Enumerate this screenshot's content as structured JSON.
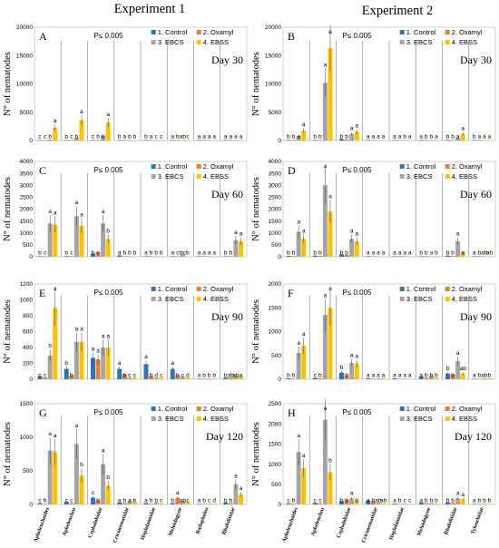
{
  "figure": {
    "col_titles": [
      "Experiment 1",
      "Experiment 2"
    ],
    "ylabel": "N° of nematodes",
    "p_text": "P≤ 0.005"
  },
  "chart_data": [
    {
      "type": "bar",
      "panel": "A",
      "day": "Day 30",
      "column": 0,
      "row": 0,
      "ylim": [
        0,
        20000
      ],
      "yticks": [
        0,
        5000,
        10000,
        15000,
        20000
      ],
      "categories": [
        "Aphelenchoides",
        "Aphelenchus",
        "Cephalobidae",
        "Criconematidae",
        "Hoplolaimidae",
        "Meloidogyne",
        "Radopholus",
        "Rhabditidae"
      ],
      "series": [
        {
          "name": "1. Control",
          "color": "#2e75b6",
          "values": [
            30,
            60,
            40,
            5,
            5,
            5,
            5,
            5
          ]
        },
        {
          "name": "2. Oxamyl",
          "color": "#ed7d31",
          "values": [
            20,
            30,
            30,
            5,
            5,
            5,
            5,
            5
          ]
        },
        {
          "name": "3. EBCS",
          "color": "#a5a5a5",
          "values": [
            200,
            500,
            800,
            10,
            10,
            40,
            5,
            10
          ]
        },
        {
          "name": "4. EBSS",
          "color": "#ffc000",
          "values": [
            2300,
            3600,
            3200,
            10,
            10,
            20,
            5,
            10
          ]
        }
      ],
      "letters": [
        [
          "c",
          "c",
          "b",
          "a"
        ],
        [
          "b",
          "c",
          "b",
          "a"
        ],
        [
          "c",
          "b",
          "b",
          "a"
        ],
        [
          "b",
          "a",
          "b",
          "b"
        ],
        [
          "b",
          "a",
          "c",
          "c"
        ],
        [
          "a",
          "b",
          "ab",
          "c"
        ],
        [
          "a",
          "a",
          "a",
          "a"
        ],
        [
          "a",
          "a",
          "a",
          "a"
        ]
      ]
    },
    {
      "type": "bar",
      "panel": "B",
      "day": "Day 30",
      "column": 1,
      "row": 0,
      "ylim": [
        0,
        20000
      ],
      "yticks": [
        0,
        5000,
        10000,
        15000,
        20000
      ],
      "categories": [
        "Aphelenchoides",
        "Aphelenchus",
        "Cephalobidae",
        "Criconematidae",
        "Hoplolaimidae",
        "Meloidogyne",
        "Rhabditidae",
        "Tylenchidae"
      ],
      "series": [
        {
          "name": "1. Control",
          "color": "#2e75b6",
          "values": [
            100,
            100,
            300,
            5,
            5,
            10,
            100,
            5
          ]
        },
        {
          "name": "2. Oxamyl",
          "color": "#ed7d31",
          "values": [
            100,
            100,
            200,
            5,
            5,
            10,
            100,
            5
          ]
        },
        {
          "name": "3. EBCS",
          "color": "#a5a5a5",
          "values": [
            800,
            10200,
            1200,
            10,
            10,
            40,
            500,
            10
          ]
        },
        {
          "name": "4. EBSS",
          "color": "#ffc000",
          "values": [
            1800,
            16300,
            1600,
            10,
            10,
            30,
            1200,
            10
          ]
        }
      ],
      "letters": [
        [
          "b",
          "b",
          "a",
          "a"
        ],
        [
          "b",
          "b",
          "a",
          "a"
        ],
        [
          "b",
          "b",
          "a",
          "a"
        ],
        [
          "a",
          "a",
          "a",
          "a"
        ],
        [
          "a",
          "a",
          "b",
          "a"
        ],
        [
          "a",
          "b",
          "b",
          "a"
        ],
        [
          "b",
          "b",
          "a",
          "a"
        ],
        [
          "b",
          "a",
          "a",
          "a"
        ]
      ]
    },
    {
      "type": "bar",
      "panel": "C",
      "day": "Day 60",
      "column": 0,
      "row": 1,
      "ylim": [
        0,
        4000
      ],
      "yticks": [
        0,
        500,
        1000,
        1500,
        2000,
        2500,
        3000,
        3500,
        4000
      ],
      "categories": [
        "Aphelenchoides",
        "Aphelenchus",
        "Cephalobidae",
        "Criconematidae",
        "Hoplolaimidae",
        "Meloidogyne",
        "Radopholus",
        "Rhabditidae"
      ],
      "series": [
        {
          "name": "1. Control",
          "color": "#2e75b6",
          "values": [
            20,
            30,
            130,
            60,
            10,
            20,
            5,
            10
          ]
        },
        {
          "name": "2. Oxamyl",
          "color": "#ed7d31",
          "values": [
            10,
            20,
            200,
            20,
            5,
            10,
            5,
            5
          ]
        },
        {
          "name": "3. EBCS",
          "color": "#a5a5a5",
          "values": [
            1400,
            1700,
            1400,
            20,
            10,
            100,
            5,
            700
          ]
        },
        {
          "name": "4. EBSS",
          "color": "#ffc000",
          "values": [
            1350,
            1300,
            750,
            20,
            10,
            20,
            5,
            650
          ]
        }
      ],
      "letters": [
        [
          "b",
          "c",
          "a",
          "a"
        ],
        [
          "b",
          "c",
          "a",
          "a"
        ],
        [
          "b",
          "c",
          "a",
          "b"
        ],
        [
          "a",
          "b",
          "b",
          "b"
        ],
        [
          "a",
          "b",
          "b",
          "b"
        ],
        [
          "a",
          "c",
          "bc",
          "b"
        ],
        [
          "a",
          "a",
          "a",
          "a"
        ],
        [
          "b",
          "b",
          "a",
          "a"
        ]
      ]
    },
    {
      "type": "bar",
      "panel": "D",
      "day": "Day 60",
      "column": 1,
      "row": 1,
      "ylim": [
        0,
        4000
      ],
      "yticks": [
        0,
        500,
        1000,
        1500,
        2000,
        2500,
        3000,
        3500,
        4000
      ],
      "categories": [
        "Aphelenchoides",
        "Aphelenchus",
        "Cephalobidae",
        "Criconematidae",
        "Hoplolaimidae",
        "Meloidogyne",
        "Rhabditidae",
        "Tylenchidae"
      ],
      "series": [
        {
          "name": "1. Control",
          "color": "#2e75b6",
          "values": [
            40,
            50,
            100,
            10,
            5,
            10,
            50,
            5
          ]
        },
        {
          "name": "2. Oxamyl",
          "color": "#ed7d31",
          "values": [
            30,
            40,
            80,
            10,
            5,
            10,
            40,
            5
          ]
        },
        {
          "name": "3. EBCS",
          "color": "#a5a5a5",
          "values": [
            1050,
            3000,
            750,
            20,
            10,
            20,
            650,
            20
          ]
        },
        {
          "name": "4. EBSS",
          "color": "#ffc000",
          "values": [
            750,
            1900,
            650,
            20,
            10,
            30,
            200,
            10
          ]
        }
      ],
      "letters": [
        [
          "b",
          "b",
          "a",
          "a"
        ],
        [
          "b",
          "b",
          "a",
          "a"
        ],
        [
          "b",
          "b",
          "a",
          "a"
        ],
        [
          "a",
          "a",
          "a",
          "a"
        ],
        [
          "a",
          "a",
          "a",
          "a"
        ],
        [
          "b",
          "b",
          "a",
          "b"
        ],
        [
          "b",
          "b",
          "a",
          "a"
        ],
        [
          "a",
          "b",
          "ab",
          "ab"
        ]
      ]
    },
    {
      "type": "bar",
      "panel": "E",
      "day": "Day 90",
      "column": 0,
      "row": 2,
      "ylim": [
        0,
        1200
      ],
      "yticks": [
        0,
        200,
        400,
        600,
        800,
        1000,
        1200
      ],
      "categories": [
        "Aphelenchoides",
        "Aphelenchus",
        "Cephalobidae",
        "Criconematidae",
        "Hoplolaimidae",
        "Meloidogyne",
        "Radopholus",
        "Rhabditidae"
      ],
      "series": [
        {
          "name": "1. Control",
          "color": "#2e75b6",
          "values": [
            40,
            130,
            270,
            130,
            190,
            130,
            5,
            20
          ]
        },
        {
          "name": "2. Oxamyl",
          "color": "#ed7d31",
          "values": [
            20,
            50,
            250,
            60,
            40,
            50,
            5,
            20
          ]
        },
        {
          "name": "3. EBCS",
          "color": "#a5a5a5",
          "values": [
            300,
            470,
            400,
            20,
            20,
            30,
            10,
            40
          ]
        },
        {
          "name": "4. EBSS",
          "color": "#ffc000",
          "values": [
            900,
            470,
            400,
            20,
            20,
            20,
            10,
            40
          ]
        }
      ],
      "letters": [
        [
          "c",
          "c",
          "b",
          "a"
        ],
        [
          "b",
          "b",
          "a",
          "a"
        ],
        [
          "a",
          "a",
          "a",
          "a"
        ],
        [
          "a",
          "b",
          "c",
          "c"
        ],
        [
          "a",
          "b",
          "d",
          "c"
        ],
        [
          "a",
          "b",
          "c",
          "d"
        ],
        [
          "a",
          "b",
          "b",
          "b"
        ],
        [
          "b",
          "ab",
          "ab",
          "a"
        ]
      ]
    },
    {
      "type": "bar",
      "panel": "F",
      "day": "Day 90",
      "column": 1,
      "row": 2,
      "ylim": [
        0,
        2000
      ],
      "yticks": [
        0,
        500,
        1000,
        1500,
        2000
      ],
      "categories": [
        "Aphelenchoides",
        "Aphelenchus",
        "Cephalobidae",
        "Criconematidae",
        "Hoplolaimidae",
        "Meloidogyne",
        "Rhabditidae",
        "Tylenchidae"
      ],
      "series": [
        {
          "name": "1. Control",
          "color": "#2e75b6",
          "values": [
            20,
            30,
            140,
            20,
            20,
            60,
            120,
            10
          ]
        },
        {
          "name": "2. Oxamyl",
          "color": "#ed7d31",
          "values": [
            10,
            20,
            80,
            10,
            10,
            30,
            100,
            5
          ]
        },
        {
          "name": "3. EBCS",
          "color": "#a5a5a5",
          "values": [
            550,
            1350,
            340,
            20,
            10,
            80,
            380,
            20
          ]
        },
        {
          "name": "4. EBSS",
          "color": "#ffc000",
          "values": [
            700,
            1500,
            330,
            20,
            10,
            30,
            120,
            20
          ]
        }
      ],
      "letters": [
        [
          "b",
          "b",
          "a",
          "a"
        ],
        [
          "c",
          "b",
          "a",
          "a"
        ],
        [
          "b",
          "b",
          "a",
          "a"
        ],
        [
          "a",
          "a",
          "a",
          "a"
        ],
        [
          "a",
          "a",
          "a",
          "a"
        ],
        [
          "a",
          "b",
          "b",
          "b"
        ],
        [
          "b",
          "b",
          "a",
          "ab"
        ],
        [
          "a",
          "b",
          "ab",
          "b"
        ]
      ]
    },
    {
      "type": "bar",
      "panel": "G",
      "day": "Day 120",
      "column": 0,
      "row": 3,
      "ylim": [
        0,
        1500
      ],
      "yticks": [
        0,
        500,
        1000,
        1500
      ],
      "categories": [
        "Aphelenchoides",
        "Aphelenchus",
        "Cephalobidae",
        "Criconematidae",
        "Hoplolaimidae",
        "Meloidogyne",
        "Radopholus",
        "Rhabditidae"
      ],
      "series": [
        {
          "name": "1. Control",
          "color": "#2e75b6",
          "values": [
            20,
            40,
            100,
            30,
            20,
            20,
            5,
            30
          ]
        },
        {
          "name": "2. Oxamyl",
          "color": "#ed7d31",
          "values": [
            10,
            20,
            60,
            20,
            10,
            100,
            5,
            20
          ]
        },
        {
          "name": "3. EBCS",
          "color": "#a5a5a5",
          "values": [
            800,
            900,
            600,
            50,
            30,
            50,
            10,
            300
          ]
        },
        {
          "name": "4. EBSS",
          "color": "#ffc000",
          "values": [
            780,
            430,
            280,
            30,
            20,
            40,
            10,
            150
          ]
        }
      ],
      "letters": [
        [
          "c",
          "b",
          "a",
          "a"
        ],
        [
          "c",
          "c",
          "a",
          "b"
        ],
        [
          "c",
          "b",
          "a",
          "b"
        ],
        [
          "a",
          "b",
          "a",
          "b"
        ],
        [
          "a",
          "b",
          "b",
          "c"
        ],
        [
          "b",
          "a",
          "ab",
          "c"
        ],
        [
          "a",
          "b",
          "c",
          "d"
        ],
        [
          "b",
          "b",
          "a",
          "a"
        ]
      ]
    },
    {
      "type": "bar",
      "panel": "H",
      "day": "Day 120",
      "column": 1,
      "row": 3,
      "ylim": [
        0,
        2500
      ],
      "yticks": [
        0,
        500,
        1000,
        1500,
        2000,
        2500
      ],
      "categories": [
        "Aphelenchoides",
        "Aphelenchus",
        "Cephalobidae",
        "Criconematidae",
        "Hoplolaimidae",
        "Meloidogyne",
        "Rhabditidae",
        "Tylenchidae"
      ],
      "series": [
        {
          "name": "1. Control",
          "color": "#2e75b6",
          "values": [
            30,
            40,
            80,
            100,
            20,
            50,
            50,
            10
          ]
        },
        {
          "name": "2. Oxamyl",
          "color": "#ed7d31",
          "values": [
            20,
            30,
            110,
            80,
            10,
            30,
            40,
            10
          ]
        },
        {
          "name": "3. EBCS",
          "color": "#a5a5a5",
          "values": [
            1300,
            2100,
            150,
            40,
            20,
            30,
            150,
            20
          ]
        },
        {
          "name": "4. EBSS",
          "color": "#ffc000",
          "values": [
            900,
            800,
            100,
            30,
            10,
            20,
            130,
            10
          ]
        }
      ],
      "letters": [
        [
          "c",
          "b",
          "a",
          "a"
        ],
        [
          "c",
          "c",
          "a",
          "b"
        ],
        [
          "b",
          "b",
          "a",
          "b"
        ],
        [
          "a",
          "b",
          "ab",
          "ab"
        ],
        [
          "a",
          "b",
          "c",
          "c"
        ],
        [
          "a",
          "b",
          "b",
          "b"
        ],
        [
          "b",
          "b",
          "a",
          "a"
        ],
        [
          "a",
          "b",
          "b",
          "b"
        ]
      ]
    }
  ]
}
